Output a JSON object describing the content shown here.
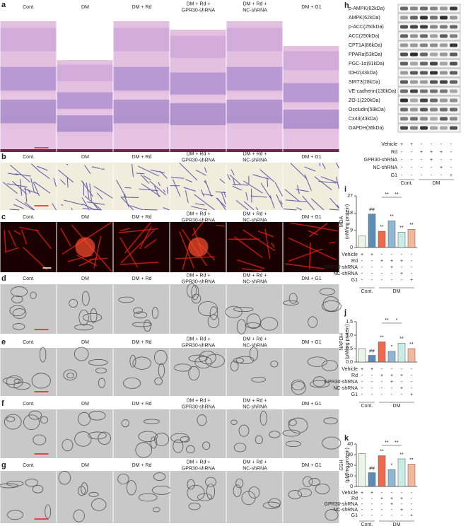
{
  "panel_letters": [
    "a",
    "b",
    "c",
    "d",
    "e",
    "f",
    "g",
    "h",
    "i",
    "j",
    "k"
  ],
  "columns": [
    [
      "Cont."
    ],
    [
      "DM"
    ],
    [
      "DM + Rd"
    ],
    [
      "DM + Rd +",
      "GPR30-shRNA"
    ],
    [
      "DM + Rd +",
      "NC-shRNA"
    ],
    [
      "DM + G1"
    ]
  ],
  "western_blot": {
    "proteins": [
      "p-AMPK(62kDa)",
      "AMPK(62kDa)",
      "p-ACC(250kDa)",
      "ACC(250kDa)",
      "CPT1A(86kDa)",
      "PPARα(53kDa)",
      "PGC-1α(91kDa)",
      "IDH2(43kDa)",
      "SIRT3(28kDa)",
      "VE-cadherin(130kDa)",
      "ZO-1(220kDa)",
      "Occludin(59kDa)",
      "Cx43(43kDa)",
      "GAPDH(36kDa)"
    ]
  },
  "treatments": {
    "rows": [
      {
        "name": "Vehicle",
        "signs": [
          "+",
          "+",
          "-",
          "-",
          "-",
          "-"
        ]
      },
      {
        "name": "Rd",
        "signs": [
          "-",
          "-",
          "+",
          "+",
          "+",
          "-"
        ]
      },
      {
        "name": "GPR30-shRNA",
        "signs": [
          "-",
          "-",
          "-",
          "+",
          "-",
          "-"
        ]
      },
      {
        "name": "NC-shRNA",
        "signs": [
          "-",
          "-",
          "-",
          "-",
          "+",
          "-"
        ]
      },
      {
        "name": "G1",
        "signs": [
          "-",
          "-",
          "-",
          "-",
          "-",
          "+"
        ]
      }
    ],
    "groups": [
      "Cont.",
      "DM"
    ]
  },
  "chart_data": [
    {
      "type": "bar",
      "y_label": [
        "MDA",
        "(nM/mg protein)"
      ],
      "ylim": [
        0,
        27
      ],
      "yticks": [
        0,
        9,
        18,
        27
      ],
      "values": [
        6,
        17.5,
        8.5,
        14,
        8,
        9.5
      ],
      "colors": [
        "#eaf5e6",
        "#5b8db8",
        "#f0674a",
        "#8fb6d2",
        "#c9ece7",
        "#f6b79c"
      ],
      "marks": [
        null,
        "##",
        "**",
        "**",
        "**",
        "**"
      ],
      "comparison_labels": [
        "**",
        "**"
      ]
    },
    {
      "type": "bar",
      "y_label": [
        "NAPDH",
        "(μM/mg protein)"
      ],
      "ylim": [
        0,
        1.5
      ],
      "yticks": [
        {
          "value": 0,
          "label": "0.0"
        },
        {
          "value": 0.5,
          "label": "0.5"
        },
        {
          "value": 1,
          "label": "1.0"
        },
        {
          "value": 1.5,
          "label": "1.5"
        }
      ],
      "values": [
        0.5,
        0.25,
        0.75,
        0.4,
        0.7,
        0.5
      ],
      "colors": [
        "#eaf5e6",
        "#5b8db8",
        "#f0674a",
        "#8fb6d2",
        "#c9ece7",
        "#f6b79c"
      ],
      "marks": [
        null,
        "##",
        "**",
        "*",
        "**",
        "**"
      ],
      "comparison_labels": [
        "**",
        "*"
      ]
    },
    {
      "type": "bar",
      "y_label": [
        "GSH",
        "(μM/mg protein)"
      ],
      "ylim": [
        0,
        40
      ],
      "yticks": [
        0,
        10,
        20,
        30,
        40
      ],
      "values": [
        31,
        13,
        29,
        16,
        26,
        21
      ],
      "colors": [
        "#eaf5e6",
        "#5b8db8",
        "#f0674a",
        "#8fb6d2",
        "#c9ece7",
        "#f6b79c"
      ],
      "marks": [
        null,
        "##",
        "**",
        "*",
        "**",
        "**"
      ],
      "comparison_labels": [
        "**",
        "**"
      ]
    }
  ]
}
